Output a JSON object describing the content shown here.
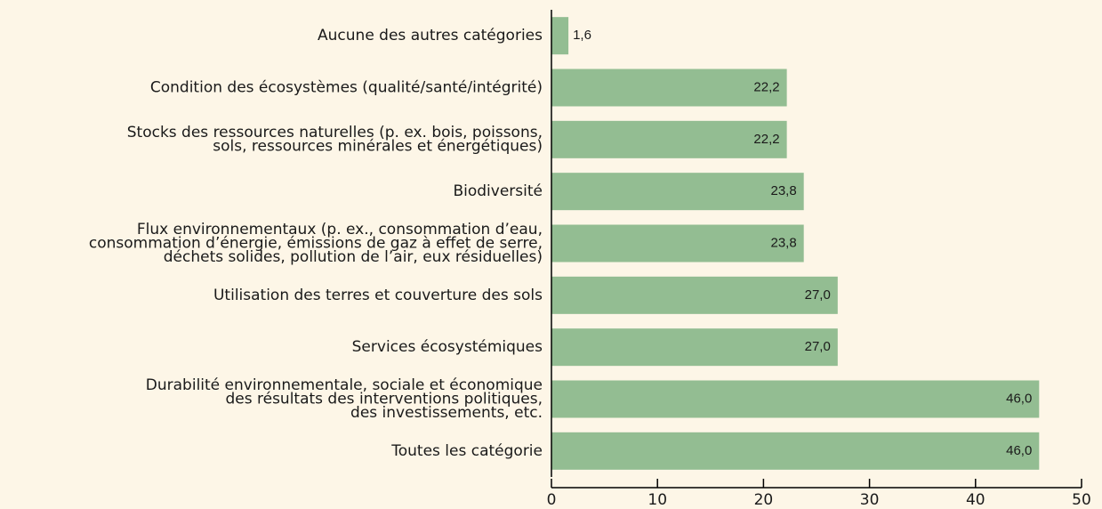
{
  "chart_data": {
    "type": "barh",
    "categories": [
      [
        "Aucune des autres catégories"
      ],
      [
        "Condition des écosystèmes (qualité/santé/intégrité)"
      ],
      [
        "Stocks des ressources naturelles (p. ex. bois, poissons,",
        "sols, ressources minérales et énergétiques)"
      ],
      [
        "Biodiversité"
      ],
      [
        "Flux environnementaux (p. ex., consommation d’eau,",
        "consommation d’énergie, émissions de gaz à effet de serre,",
        "déchets solides, pollution de l’air, eux résiduelles)"
      ],
      [
        "Utilisation des terres et couverture des sols"
      ],
      [
        "Services écosystémiques"
      ],
      [
        "Durabilité environnementale, sociale et économique",
        "des résultats des interventions politiques,",
        "des investissements, etc."
      ],
      [
        "Toutes les catégorie"
      ]
    ],
    "values": [
      1.6,
      22.2,
      22.2,
      23.8,
      23.8,
      27.0,
      27.0,
      46.0,
      46.0
    ],
    "value_labels": [
      "1,6",
      "22,2",
      "22,2",
      "23,8",
      "23,8",
      "27,0",
      "27,0",
      "46,0",
      "46,0"
    ],
    "color": "#93bd92",
    "xlim": [
      0,
      50
    ],
    "xticks": [
      0,
      10,
      20,
      30,
      40,
      50
    ]
  }
}
